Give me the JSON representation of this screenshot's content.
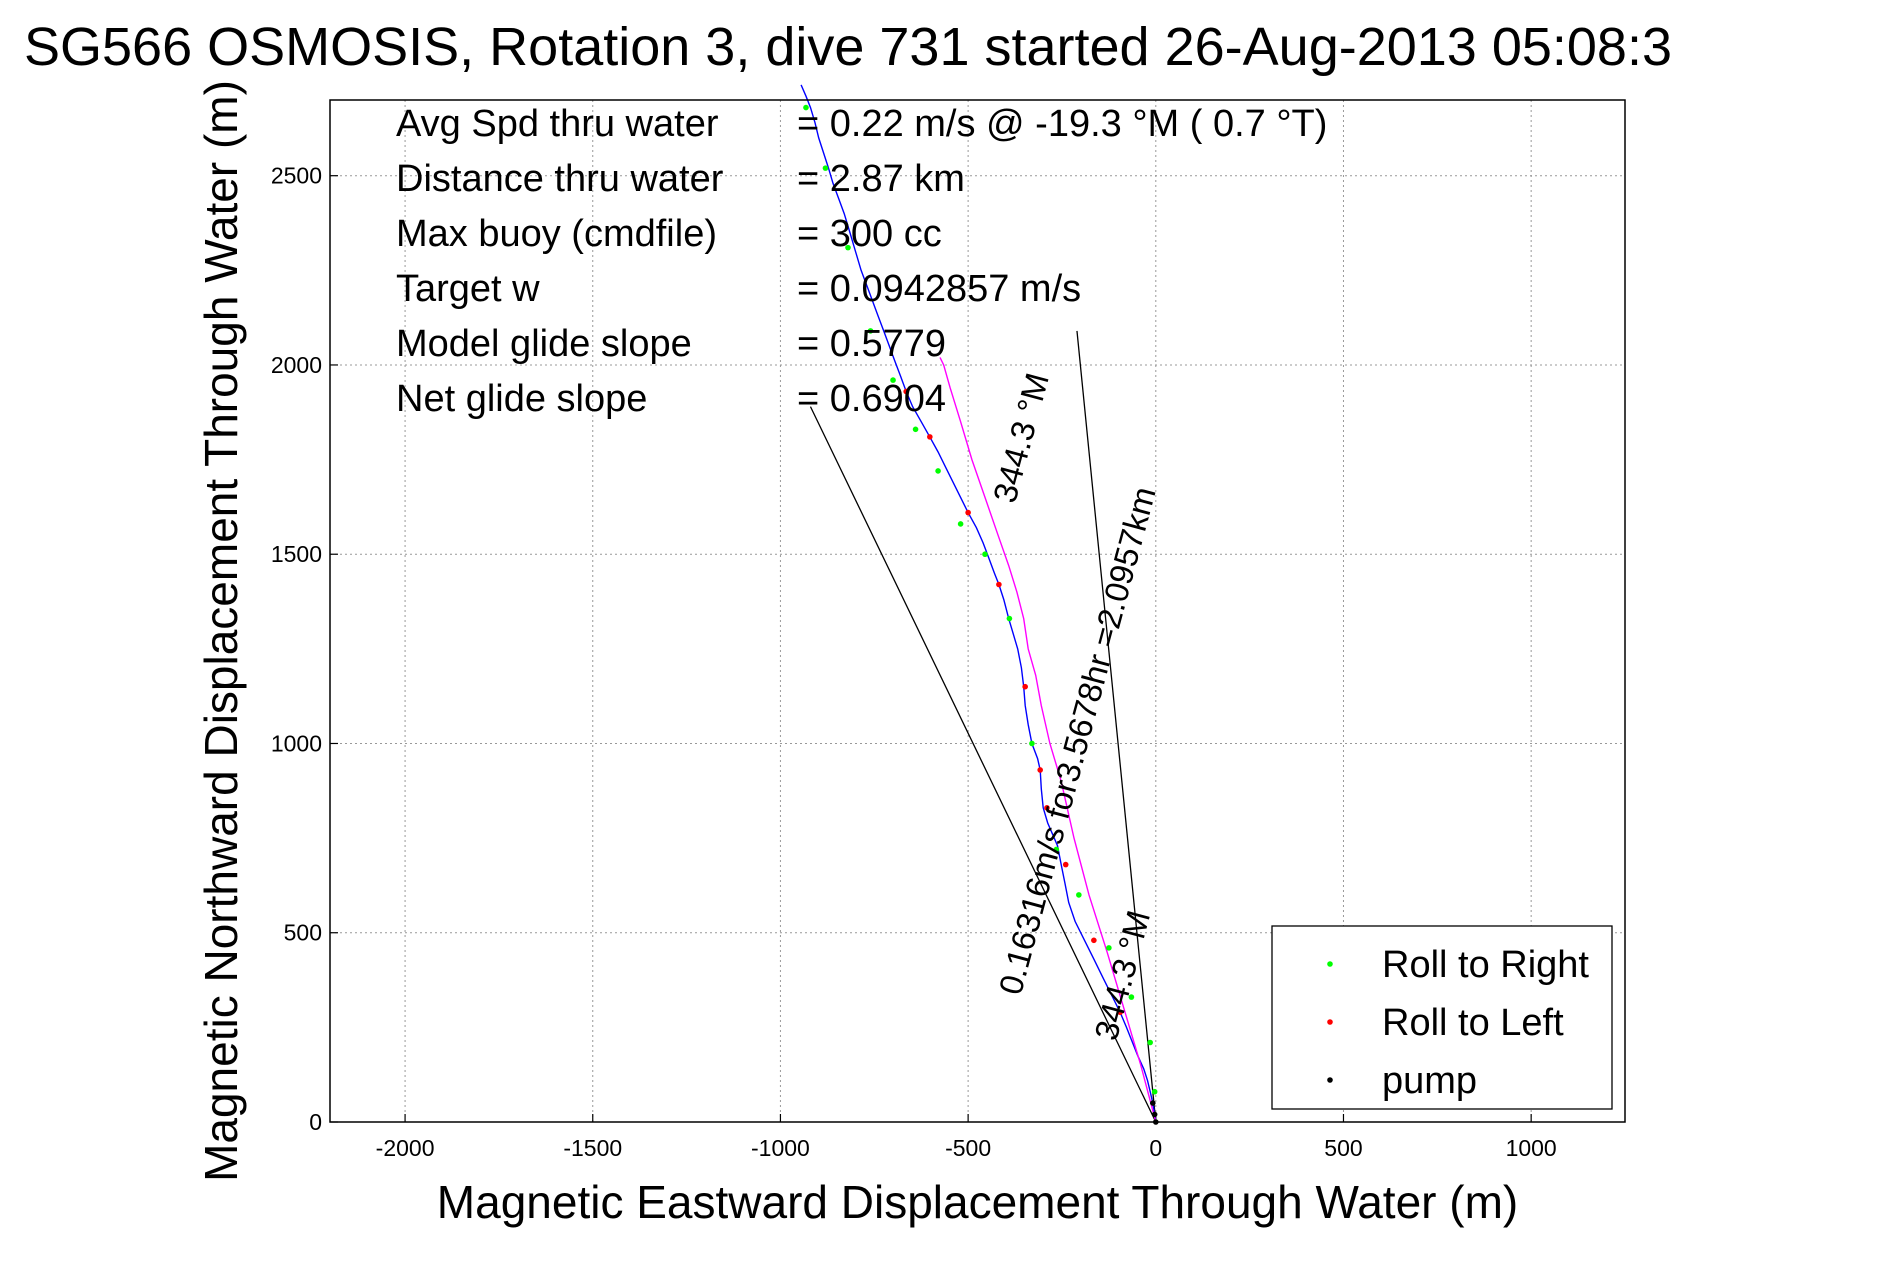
{
  "chart_data": {
    "type": "line",
    "title": "SG566 OSMOSIS, Rotation 3, dive 731 started 26-Aug-2013 05:08:3",
    "xlabel": "Magnetic Eastward Displacement Through Water (m)",
    "ylabel": "Magnetic Northward Displacement Through Water (m)",
    "xlim": [
      -2200,
      1250
    ],
    "ylim": [
      0,
      2700
    ],
    "xticks": [
      -2000,
      -1500,
      -1000,
      -500,
      0,
      500,
      1000
    ],
    "yticks": [
      0,
      500,
      1000,
      1500,
      2000,
      2500
    ],
    "grid": true,
    "legend_position": "bottom-right",
    "info_lines": [
      {
        "label": "Avg Spd thru water",
        "value": "=  0.22 m/s @ -19.3 °M (  0.7 °T)"
      },
      {
        "label": "Distance thru water",
        "value": "=  2.87 km"
      },
      {
        "label": "Max buoy (cmdfile)",
        "value": "= 300 cc"
      },
      {
        "label": "Target w",
        "value": "= 0.0942857 m/s"
      },
      {
        "label": "Model glide slope",
        "value": "= 0.5779"
      },
      {
        "label": "Net glide slope",
        "value": "= 0.6904"
      }
    ],
    "annotations": [
      {
        "text": "0.16316m/s for3.5678hr =2.0957km",
        "x": -180,
        "y": 1000,
        "angle": -75
      },
      {
        "text": "344.3 °M",
        "x": -330,
        "y": 1800,
        "angle": -75
      },
      {
        "text": "344.3 °M",
        "x": -60,
        "y": 380,
        "angle": -75
      }
    ],
    "reference_lines": [
      {
        "name": "net-glide-line",
        "x": [
          0,
          -920
        ],
        "y": [
          0,
          1890
        ]
      },
      {
        "name": "model-glide-line",
        "x": [
          0,
          -210
        ],
        "y": [
          0,
          2090
        ]
      }
    ],
    "series": [
      {
        "name": "track",
        "color": "#0000ff",
        "x": [
          0,
          -3,
          -8,
          -15,
          -22,
          -32,
          -48,
          -62,
          -78,
          -95,
          -115,
          -140,
          -165,
          -190,
          -215,
          -232,
          -242,
          -252,
          -262,
          -275,
          -288,
          -300,
          -305,
          -308,
          -315,
          -330,
          -340,
          -348,
          -352,
          -358,
          -368,
          -380,
          -392,
          -405,
          -418,
          -430,
          -445,
          -460,
          -478,
          -500,
          -520,
          -540,
          -560,
          -580,
          -602,
          -625,
          -648,
          -665,
          -680,
          -695,
          -710,
          -725,
          -740,
          -755,
          -770,
          -785,
          -800,
          -815,
          -830,
          -845,
          -860,
          -872,
          -885,
          -898,
          -908,
          -920,
          -932,
          -945
        ],
        "y": [
          0,
          20,
          50,
          80,
          110,
          140,
          175,
          210,
          250,
          290,
          330,
          380,
          430,
          480,
          530,
          580,
          630,
          680,
          730,
          760,
          790,
          830,
          880,
          930,
          960,
          1000,
          1050,
          1100,
          1150,
          1200,
          1250,
          1290,
          1330,
          1380,
          1420,
          1450,
          1490,
          1530,
          1570,
          1610,
          1650,
          1690,
          1730,
          1770,
          1810,
          1850,
          1890,
          1930,
          1970,
          2010,
          2050,
          2090,
          2130,
          2170,
          2210,
          2250,
          2300,
          2350,
          2400,
          2440,
          2480,
          2520,
          2560,
          2600,
          2640,
          2680,
          2710,
          2740
        ]
      },
      {
        "name": "track-magenta",
        "color": "#ff00ff",
        "x": [
          0,
          -40,
          -85,
          -130,
          -178,
          -218,
          -252,
          -282,
          -305,
          -320,
          -340,
          -352,
          -370,
          -392,
          -420,
          -455,
          -490,
          -520,
          -548,
          -565,
          -575
        ],
        "y": [
          0,
          150,
          300,
          450,
          600,
          750,
          900,
          1000,
          1100,
          1180,
          1250,
          1330,
          1400,
          1470,
          1550,
          1650,
          1750,
          1850,
          1940,
          2000,
          2020
        ]
      },
      {
        "name": "Roll to Right",
        "color": "#00ff00",
        "x": [
          -3,
          -15,
          -65,
          -125,
          -205,
          -265,
          -330,
          -390,
          -455,
          -520,
          -580,
          -640,
          -700,
          -760,
          -820,
          -880,
          -932
        ],
        "y": [
          80,
          210,
          330,
          460,
          600,
          720,
          1000,
          1330,
          1500,
          1580,
          1720,
          1830,
          1960,
          2090,
          2310,
          2520,
          2680
        ]
      },
      {
        "name": "Roll to Left",
        "color": "#ff0000",
        "x": [
          -95,
          -165,
          -240,
          -290,
          -308,
          -348,
          -418,
          -500,
          -602,
          -665
        ],
        "y": [
          290,
          480,
          680,
          830,
          930,
          1150,
          1420,
          1610,
          1810,
          1930
        ]
      },
      {
        "name": "pump",
        "color": "#000000",
        "x": [
          0,
          -3,
          -8
        ],
        "y": [
          0,
          20,
          50
        ]
      }
    ],
    "legend": [
      {
        "label": "Roll to Right",
        "color": "#00ff00"
      },
      {
        "label": "Roll to Left",
        "color": "#ff0000"
      },
      {
        "label": "pump",
        "color": "#000000"
      }
    ]
  }
}
